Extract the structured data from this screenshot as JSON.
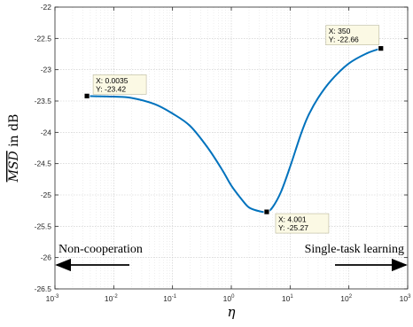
{
  "chart_data": {
    "type": "line",
    "title": "",
    "xlabel": "η",
    "ylabel": "MSD in dB",
    "xscale": "log",
    "xlim": [
      0.001,
      1000
    ],
    "ylim": [
      -26.5,
      -22
    ],
    "x_ticks": [
      {
        "base": "10",
        "exp": "-3"
      },
      {
        "base": "10",
        "exp": "-2"
      },
      {
        "base": "10",
        "exp": "-1"
      },
      {
        "base": "10",
        "exp": "0"
      },
      {
        "base": "10",
        "exp": "1"
      },
      {
        "base": "10",
        "exp": "2"
      },
      {
        "base": "10",
        "exp": "3"
      }
    ],
    "y_ticks": [
      "-22",
      "-22.5",
      "-23",
      "-23.5",
      "-24",
      "-24.5",
      "-25",
      "-25.5",
      "-26",
      "-26.5"
    ],
    "grid": true,
    "series": [
      {
        "color": "#0072BD",
        "x": [
          0.0035,
          0.01,
          0.02,
          0.05,
          0.1,
          0.2,
          0.4,
          0.7,
          1.0,
          1.5,
          2.0,
          3.0,
          4.001,
          5.0,
          7.0,
          10.0,
          15.0,
          20.0,
          30.0,
          50.0,
          100.0,
          200.0,
          350.0
        ],
        "y": [
          -23.42,
          -23.43,
          -23.45,
          -23.55,
          -23.7,
          -23.9,
          -24.25,
          -24.6,
          -24.85,
          -25.07,
          -25.2,
          -25.26,
          -25.27,
          -25.2,
          -24.95,
          -24.55,
          -24.05,
          -23.75,
          -23.45,
          -23.17,
          -22.9,
          -22.74,
          -22.66
        ]
      }
    ],
    "data_tips": [
      {
        "x": 0.0035,
        "y": -23.42,
        "label_x": "X: 0.0035",
        "label_y": "Y: -23.42"
      },
      {
        "x": 4.001,
        "y": -25.27,
        "label_x": "X: 4.001",
        "label_y": "Y: -25.27"
      },
      {
        "x": 350,
        "y": -22.66,
        "label_x": "X: 350",
        "label_y": "Y: -22.66"
      }
    ],
    "annotations": [
      {
        "text": "Non-cooperation",
        "arrow": "left"
      },
      {
        "text": "Single-task learning",
        "arrow": "right"
      }
    ]
  }
}
